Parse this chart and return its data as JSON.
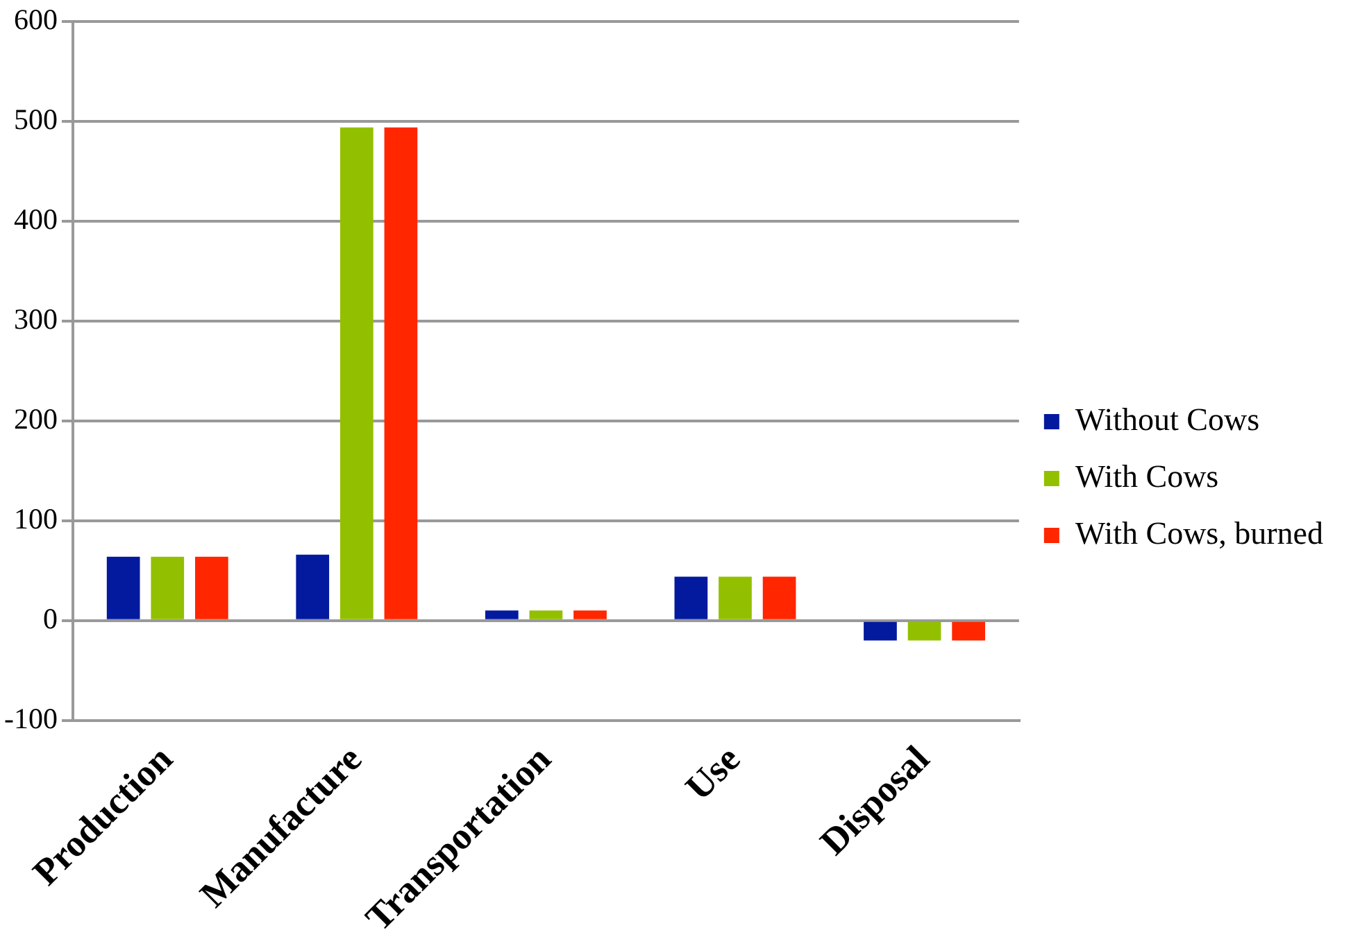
{
  "chart_data": {
    "type": "bar",
    "categories": [
      "Production",
      "Manufacture",
      "Transportation",
      "Use",
      "Disposal"
    ],
    "series": [
      {
        "name": "Without Cows",
        "color": "#031a9e",
        "values": [
          64,
          66,
          10,
          44,
          -20
        ]
      },
      {
        "name": "With Cows",
        "color": "#92c000",
        "values": [
          64,
          494,
          10,
          44,
          -20
        ]
      },
      {
        "name": "With Cows, burned",
        "color": "#ff2600",
        "values": [
          64,
          494,
          10,
          44,
          -20
        ]
      }
    ],
    "ylim": [
      -100,
      600
    ],
    "yticks": [
      -100,
      0,
      100,
      200,
      300,
      400,
      500,
      600
    ],
    "grid": "y",
    "legend": "right"
  }
}
